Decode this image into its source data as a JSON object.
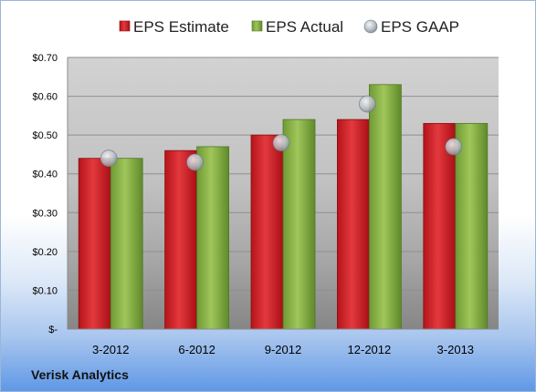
{
  "footer": {
    "company": "Verisk Analytics"
  },
  "chart_data": {
    "type": "bar",
    "title": "",
    "xlabel": "",
    "ylabel": "",
    "categories": [
      "3-2012",
      "6-2012",
      "9-2012",
      "12-2012",
      "3-2013"
    ],
    "series": [
      {
        "name": "EPS Estimate",
        "kind": "bar",
        "color": "#d9242a",
        "values": [
          0.44,
          0.46,
          0.5,
          0.54,
          0.53
        ]
      },
      {
        "name": "EPS Actual",
        "kind": "bar",
        "color": "#8db64a",
        "values": [
          0.44,
          0.47,
          0.54,
          0.63,
          0.53
        ]
      },
      {
        "name": "EPS GAAP",
        "kind": "marker",
        "color": "#b8bec6",
        "values": [
          0.44,
          0.43,
          0.48,
          0.58,
          0.47
        ]
      }
    ],
    "ylim": [
      0,
      0.7
    ],
    "yticks": [
      0,
      0.1,
      0.2,
      0.3,
      0.4,
      0.5,
      0.6,
      0.7
    ],
    "ytick_labels": [
      "$-",
      "$0.10",
      "$0.20",
      "$0.30",
      "$0.40",
      "$0.50",
      "$0.60",
      "$0.70"
    ],
    "grid": true,
    "legend_position": "top"
  }
}
